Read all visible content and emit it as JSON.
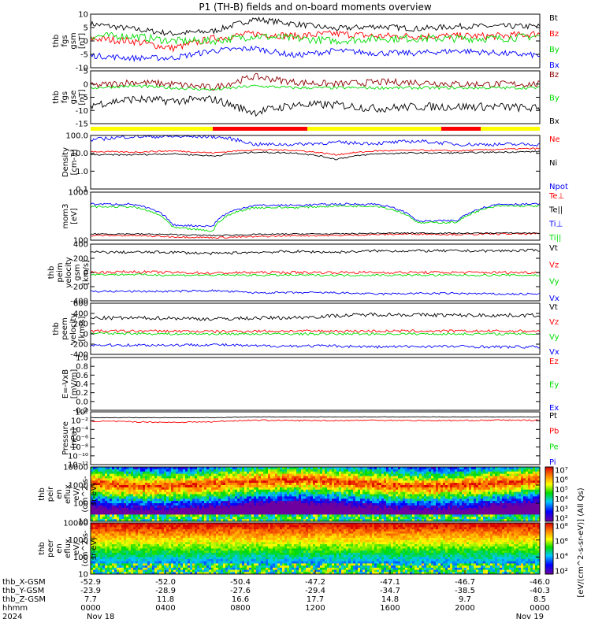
{
  "title": "P1 (TH-B) fields and on-board moments overview",
  "chart_data": [
    {
      "type": "line",
      "panel": "fgs-gsm",
      "ylabel": [
        "thb",
        "fgs",
        "gsm",
        "[nT]"
      ],
      "yticks": [
        "10",
        "5",
        "0",
        "-5",
        "-10"
      ],
      "ylim": [
        -10,
        12
      ],
      "series": [
        {
          "name": "Bt",
          "color": "#000000",
          "levels": [
            8,
            6,
            4,
            5,
            10,
            8,
            6,
            7,
            6,
            7,
            7,
            7
          ],
          "noise": 1.2
        },
        {
          "name": "Bz",
          "color": "#ff0000",
          "levels": [
            2,
            1,
            -2,
            2,
            4,
            3,
            4,
            3,
            3,
            3,
            3,
            4
          ],
          "noise": 1.5
        },
        {
          "name": "By",
          "color": "#00dd00",
          "levels": [
            3,
            3,
            1,
            1,
            3,
            2,
            1,
            2,
            2,
            2,
            2,
            3
          ],
          "noise": 1.6
        },
        {
          "name": "Bx",
          "color": "#0000ff",
          "levels": [
            -5,
            -6,
            -6,
            -3,
            -2,
            -5,
            -3,
            -4,
            -4,
            -3,
            -4,
            -5
          ],
          "noise": 1.2
        }
      ]
    },
    {
      "type": "line",
      "panel": "fgs-gse",
      "ylabel": [
        "thb",
        "fgs",
        "gse",
        "[nT]"
      ],
      "yticks": [
        "5",
        "0",
        "-5",
        "-10",
        "-15"
      ],
      "ylim": [
        -18,
        10
      ],
      "series": [
        {
          "name": "Bz",
          "color": "#8b0000",
          "levels": [
            2,
            4,
            3,
            1,
            7,
            4,
            3,
            4,
            4,
            3,
            3,
            3
          ],
          "noise": 1.8
        },
        {
          "name": "By",
          "color": "#00dd00",
          "levels": [
            1,
            2,
            1,
            0,
            2,
            1,
            1,
            1,
            1,
            1,
            1,
            1
          ],
          "noise": 0.8
        },
        {
          "name": "Bx",
          "color": "#000000",
          "levels": [
            -8,
            -5,
            -6,
            -5,
            -12,
            -8,
            -8,
            -10,
            -9,
            -9,
            -9,
            -10
          ],
          "noise": 2.2
        }
      ]
    },
    {
      "type": "line",
      "panel": "density",
      "log": true,
      "ylabel": [
        "Density",
        "[cm-3]"
      ],
      "yticks": [
        "100.0",
        "10.0",
        "1.0",
        "0.1"
      ],
      "ylim": [
        0.03,
        120
      ],
      "series": [
        {
          "name": "Ne",
          "color": "#ff0000",
          "levels": [
            10,
            9,
            11,
            8,
            13,
            12,
            6,
            11,
            12,
            11,
            14,
            16
          ],
          "noise": 0.05
        },
        {
          "name": "Ni",
          "color": "#000000",
          "levels": [
            6,
            6,
            7,
            5,
            9,
            8,
            3,
            7,
            8,
            8,
            9,
            10
          ],
          "noise": 0.05
        },
        {
          "name": "Npot",
          "color": "#0000ff",
          "levels": [
            60,
            100,
            100,
            100,
            30,
            30,
            40,
            35,
            50,
            30,
            30,
            30
          ],
          "noise": 0.12
        }
      ]
    },
    {
      "type": "line",
      "panel": "moments",
      "log": true,
      "ylabel": [
        "mom3",
        "[eV]"
      ],
      "yticks": [
        "1000",
        "100"
      ],
      "ylim": [
        15,
        3000
      ],
      "series": [
        {
          "name": "Te⊥",
          "color": "#ff0000",
          "levels": [
            25,
            25,
            22,
            20,
            22,
            25,
            25,
            28,
            30,
            28,
            30,
            30
          ],
          "noise": 0.04
        },
        {
          "name": "Te||",
          "color": "#000000",
          "levels": [
            30,
            30,
            28,
            25,
            28,
            30,
            30,
            32,
            33,
            32,
            33,
            33
          ],
          "noise": 0.03
        },
        {
          "name": "Ti⊥",
          "color": "#0000ff",
          "levels": [
            800,
            800,
            80,
            70,
            700,
            700,
            800,
            800,
            120,
            130,
            800,
            800
          ],
          "noise": 0.05
        },
        {
          "name": "Ti||",
          "color": "#00dd00",
          "levels": [
            600,
            600,
            60,
            40,
            550,
            550,
            650,
            650,
            100,
            110,
            650,
            650
          ],
          "noise": 0.05
        }
      ]
    },
    {
      "type": "line",
      "panel": "peim-velocity",
      "ylabel": [
        "thb",
        "peim",
        "velocity",
        "gsm",
        "[km/s]"
      ],
      "yticks": [
        "400",
        "200",
        "0",
        "-200",
        "-400"
      ],
      "ylim": [
        -420,
        420
      ],
      "series": [
        {
          "name": "Vt",
          "color": "#000000",
          "levels": [
            300,
            300,
            300,
            280,
            300,
            310,
            300,
            320,
            320,
            320,
            320,
            330
          ],
          "noise": 20
        },
        {
          "name": "Vz",
          "color": "#ff0000",
          "levels": [
            0,
            10,
            0,
            -10,
            0,
            0,
            0,
            0,
            0,
            0,
            0,
            0
          ],
          "noise": 20
        },
        {
          "name": "Vy",
          "color": "#00dd00",
          "levels": [
            -30,
            -30,
            -40,
            -40,
            -40,
            -40,
            -40,
            -40,
            -40,
            -40,
            -40,
            -40
          ],
          "noise": 15
        },
        {
          "name": "Vx",
          "color": "#0000ff",
          "levels": [
            -280,
            -280,
            -280,
            -270,
            -300,
            -300,
            -300,
            -320,
            -310,
            -310,
            -320,
            -320
          ],
          "noise": 15
        }
      ]
    },
    {
      "type": "line",
      "panel": "peem-velocity",
      "ylabel": [
        "thb",
        "peem",
        "velocity",
        "[km/s]"
      ],
      "yticks": [
        "600",
        "400",
        "200",
        "0",
        "-200",
        "-400"
      ],
      "ylim": [
        -480,
        620
      ],
      "series": [
        {
          "name": "Vt",
          "color": "#000000",
          "levels": [
            300,
            300,
            300,
            280,
            300,
            310,
            350,
            380,
            370,
            360,
            360,
            360
          ],
          "noise": 40
        },
        {
          "name": "Vz",
          "color": "#ff0000",
          "levels": [
            20,
            20,
            20,
            10,
            20,
            20,
            20,
            20,
            20,
            20,
            20,
            20
          ],
          "noise": 30
        },
        {
          "name": "Vy",
          "color": "#00dd00",
          "levels": [
            -30,
            -30,
            -40,
            -40,
            -40,
            -40,
            -40,
            -40,
            -40,
            -40,
            -40,
            -40
          ],
          "noise": 25
        },
        {
          "name": "Vx",
          "color": "#0000ff",
          "levels": [
            -280,
            -280,
            -280,
            -270,
            -300,
            -300,
            -300,
            -320,
            -310,
            -310,
            -320,
            -320
          ],
          "noise": 30
        }
      ]
    },
    {
      "type": "line",
      "panel": "e-field",
      "ylabel": [
        "E=-VxB",
        "[mV/m]"
      ],
      "yticks": [
        "1.0",
        "0.8",
        "0.6",
        "0.4",
        "0.2",
        "0.0",
        "-0.2"
      ],
      "ylim": [
        -0.2,
        1.0
      ],
      "series": [
        {
          "name": "Ez",
          "color": "#ff0000",
          "levels": [],
          "noise": 0
        },
        {
          "name": "Ey",
          "color": "#00dd00",
          "levels": [],
          "noise": 0
        },
        {
          "name": "Ex",
          "color": "#0000ff",
          "levels": [],
          "noise": 0
        }
      ]
    },
    {
      "type": "line",
      "panel": "pressure",
      "log": true,
      "ylabel": [
        "Pressure",
        "[nPa]"
      ],
      "yticks": [
        "10⁰",
        "10⁻²",
        "10⁻⁴",
        "10⁻⁶",
        "10⁻⁸",
        "10⁻¹⁰",
        "10⁻¹²"
      ],
      "ylim": [
        1e-12,
        5
      ],
      "series": [
        {
          "name": "Pt",
          "color": "#000000",
          "levels": [
            0.2,
            0.2,
            0.2,
            0.2,
            0.3,
            0.3,
            0.3,
            0.3,
            0.3,
            0.3,
            0.3,
            0.3
          ],
          "noise": 0.06
        },
        {
          "name": "Pb",
          "color": "#ff0000",
          "levels": [
            0.03,
            0.02,
            0.015,
            0.02,
            0.05,
            0.04,
            0.04,
            0.05,
            0.04,
            0.04,
            0.05,
            0.05
          ],
          "noise": 0.15
        },
        {
          "name": "Pe",
          "color": "#00dd00",
          "levels": [],
          "noise": 0
        },
        {
          "name": "Pi",
          "color": "#0000ff",
          "levels": [],
          "noise": 0
        }
      ]
    },
    {
      "type": "heatmap",
      "panel": "peir-eflux",
      "ylabel": [
        "thb",
        "peir",
        "en",
        "eflux",
        "eV/",
        "(cm^2-s-",
        "sr-eV)"
      ],
      "yticks": [
        "10000",
        "1000",
        "100",
        "10"
      ],
      "ylim": [
        5,
        20000
      ]
    },
    {
      "type": "heatmap",
      "panel": "peer-eflux",
      "ylabel": [
        "thb",
        "peer",
        "en",
        "eflux",
        "eV/",
        "(cm^2-s-",
        "sr-eV)"
      ],
      "yticks": [
        "10000",
        "1000",
        "100",
        "10"
      ],
      "ylim": [
        5,
        20000
      ]
    }
  ],
  "colorbar_top": {
    "ticks": [
      "10⁷",
      "10⁶",
      "10⁵",
      "10⁴",
      "10³",
      "10²"
    ]
  },
  "colorbar_bottom": {
    "ticks": [
      "10⁸",
      "10⁶",
      "10⁴",
      "10²"
    ]
  },
  "colorbar_label": "[eV/(cm^2-s-sr-eV)] (All Qs)",
  "region_bar": {
    "colors": {
      "sheath": "#ffff00",
      "sphere": "#ff0000"
    }
  },
  "x_axis": {
    "rows": [
      {
        "label": "thb_X-GSM",
        "values": [
          "-52.9",
          "-52.0",
          "-50.4",
          "-47.2",
          "-47.1",
          "-46.7",
          "-46.0"
        ]
      },
      {
        "label": "thb_Y-GSM",
        "values": [
          "-23.9",
          "-28.9",
          "-27.6",
          "-29.4",
          "-34.7",
          "-38.5",
          "-40.3"
        ]
      },
      {
        "label": "thb_Z-GSM",
        "values": [
          "7.7",
          "11.8",
          "16.6",
          "17.7",
          "14.8",
          "9.7",
          "8.5"
        ]
      },
      {
        "label": "hhmm",
        "values": [
          "0000",
          "0400",
          "0800",
          "1200",
          "1600",
          "2000",
          "0000"
        ]
      },
      {
        "label": "2024",
        "values": [
          "Nov 18",
          "",
          "",
          "",
          "",
          "",
          "Nov 19"
        ]
      }
    ]
  }
}
